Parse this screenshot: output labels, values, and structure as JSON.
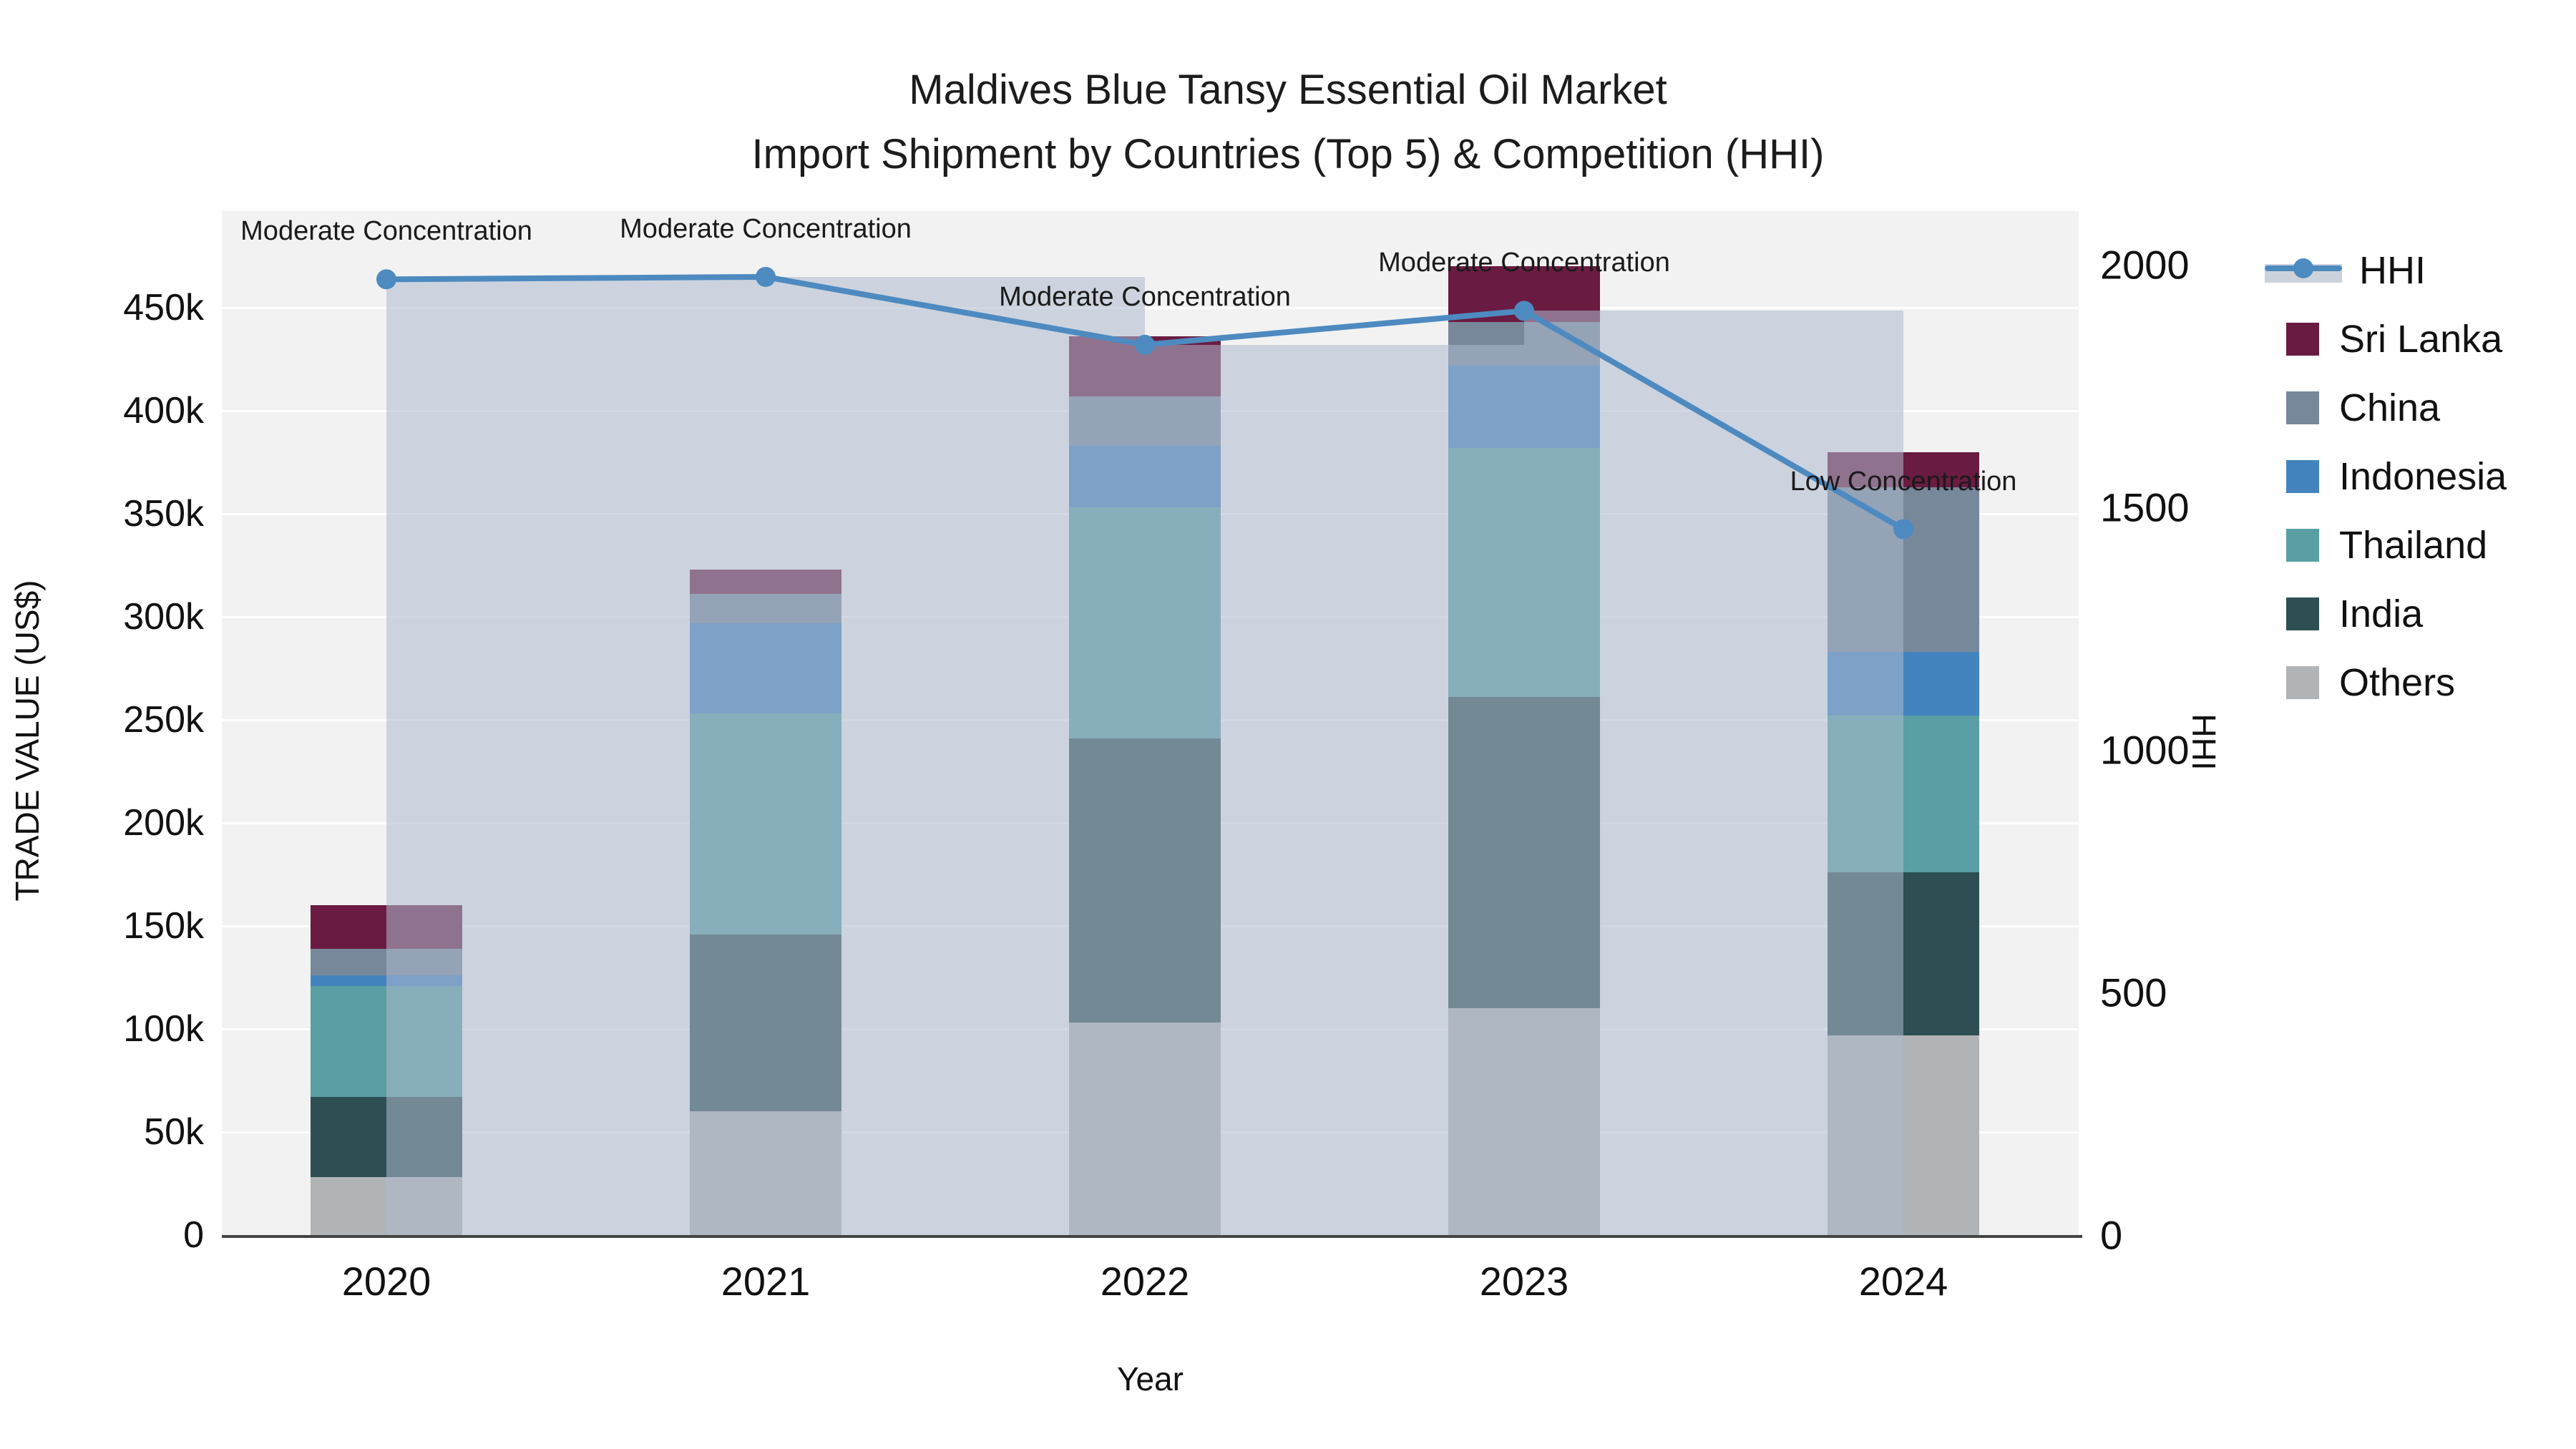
{
  "title": {
    "line1": "Maldives Blue Tansy Essential Oil Market",
    "line2": "Import Shipment by Countries (Top 5) & Competition (HHI)"
  },
  "legend": {
    "items": [
      {
        "icon": "hhi-line-icon",
        "label": "HHI",
        "color": "#4d8ac0"
      },
      {
        "icon": "swatch",
        "label": "Sri Lanka",
        "color": "#6a1b41"
      },
      {
        "icon": "swatch",
        "label": "China",
        "color": "#78889b"
      },
      {
        "icon": "swatch",
        "label": "Indonesia",
        "color": "#4484be"
      },
      {
        "icon": "swatch",
        "label": "Thailand",
        "color": "#599fa4"
      },
      {
        "icon": "swatch",
        "label": "India",
        "color": "#2d4f53"
      },
      {
        "icon": "swatch",
        "label": "Others",
        "color": "#b1b4b6"
      }
    ]
  },
  "chart_data": {
    "type": "bar",
    "subtype": "stacked-bars-with-line",
    "categories": [
      "2020",
      "2021",
      "2022",
      "2023",
      "2024"
    ],
    "values_unit": "thousand US$",
    "series": [
      {
        "name": "Others",
        "color": "#b1b4b6",
        "values": [
          28,
          60,
          103,
          110,
          97
        ]
      },
      {
        "name": "India",
        "color": "#2d4f53",
        "values": [
          39,
          86,
          138,
          151,
          79
        ]
      },
      {
        "name": "Thailand",
        "color": "#599fa4",
        "values": [
          54,
          107,
          112,
          121,
          76
        ]
      },
      {
        "name": "Indonesia",
        "color": "#4484be",
        "values": [
          5,
          44,
          30,
          40,
          31
        ]
      },
      {
        "name": "China",
        "color": "#78889b",
        "values": [
          13,
          14,
          24,
          21,
          80
        ]
      },
      {
        "name": "Sri Lanka",
        "color": "#6a1b41",
        "values": [
          21,
          12,
          29,
          27,
          17
        ]
      }
    ],
    "line_series": {
      "name": "HHI",
      "color": "#4d8ac0",
      "band_color": "rgba(173,186,205,0.55)",
      "values": [
        1970,
        1975,
        1835,
        1905,
        1455
      ]
    },
    "annotations": [
      {
        "category": "2020",
        "text": "Moderate Concentration"
      },
      {
        "category": "2021",
        "text": "Moderate Concentration"
      },
      {
        "category": "2022",
        "text": "Moderate Concentration"
      },
      {
        "category": "2023",
        "text": "Moderate Concentration"
      },
      {
        "category": "2024",
        "text": "Low Concentration"
      }
    ],
    "left_axis": {
      "label": "TRADE VALUE (US$)",
      "ticks": [
        "0",
        "50k",
        "100k",
        "150k",
        "200k",
        "250k",
        "300k",
        "350k",
        "400k",
        "450k"
      ],
      "tick_values": [
        0,
        50,
        100,
        150,
        200,
        250,
        300,
        350,
        400,
        450
      ],
      "range_max": 497
    },
    "right_axis": {
      "label": "HHI",
      "ticks": [
        "0",
        "500",
        "1000",
        "1500",
        "2000"
      ],
      "tick_values": [
        0,
        500,
        1000,
        1500,
        2000
      ],
      "range_max": 2110
    },
    "x_axis": {
      "label": "Year"
    },
    "grid": true,
    "legend_position": "right"
  },
  "colors": {
    "plot_background": "#f2f2f2",
    "gridline": "#ffffff",
    "axis_line": "#444444",
    "text": "#111111"
  }
}
